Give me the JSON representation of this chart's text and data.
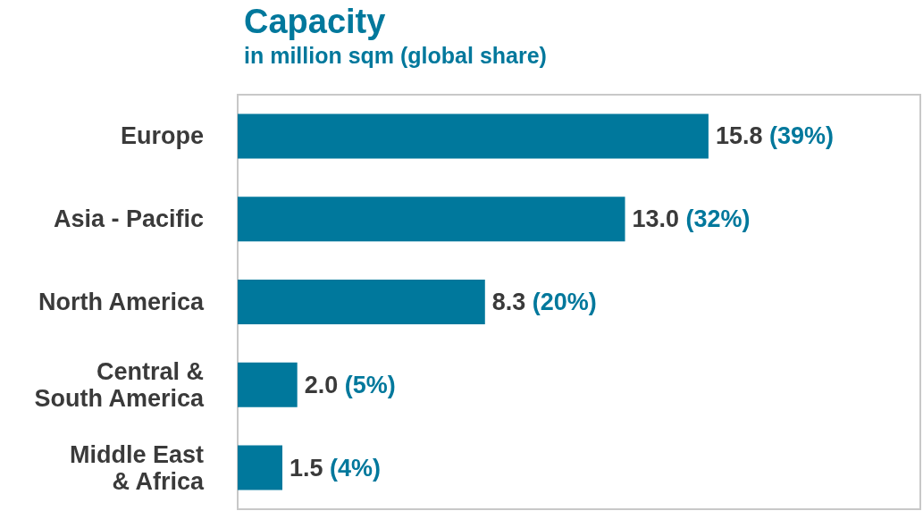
{
  "chart_data": {
    "type": "bar",
    "orientation": "horizontal",
    "title": "Capacity",
    "subtitle": "in million sqm (global share)",
    "categories": [
      "Europe",
      "Asia - Pacific",
      "North America",
      "Central &\nSouth America",
      "Middle East\n& Africa"
    ],
    "values": [
      15.8,
      13.0,
      8.3,
      2.0,
      1.5
    ],
    "value_labels": [
      "15.8 (39%)",
      "13.0 (32%)",
      "8.3 (20%)",
      "2.0 (5%)",
      "1.5 (4%)"
    ],
    "color": "#00789c",
    "grid": false
  }
}
